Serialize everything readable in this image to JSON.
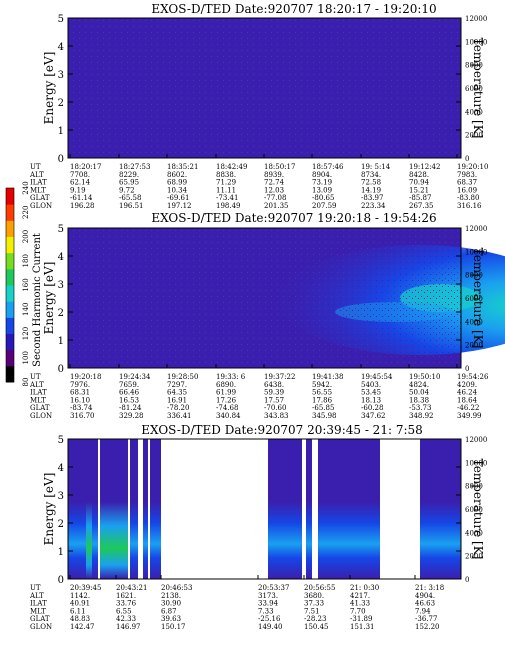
{
  "chart_data": [
    {
      "type": "heatmap",
      "title": "EXOS-D/TED   Date:920707   18:20:17 - 19:20:10",
      "ylabel": "Energy [eV]",
      "y2label": "Temperature [K]",
      "ylim": [
        0,
        5
      ],
      "y2lim": [
        0,
        12000
      ],
      "y_ticks": [
        "0",
        "1",
        "2",
        "3",
        "4",
        "5"
      ],
      "y2_ticks": [
        "0",
        "2000",
        "4000",
        "6000",
        "8000",
        "10000",
        "12000"
      ],
      "row_labels": [
        "UT",
        "ALT",
        "ILAT",
        "MLT",
        "GLAT",
        "GLON"
      ],
      "columns": [
        [
          "18:20:17",
          "7708.",
          "62.14",
          "9.19",
          "-61.14",
          "196.28"
        ],
        [
          "18:27:53",
          "8229.",
          "65.95",
          "9.72",
          "-65.58",
          "196.51"
        ],
        [
          "18:35:21",
          "8602.",
          "68.99",
          "10.34",
          "-69.61",
          "197.12"
        ],
        [
          "18:42:49",
          "8838.",
          "71.29",
          "11.11",
          "-73.41",
          "198.49"
        ],
        [
          "18:50:17",
          "8939.",
          "72.74",
          "12.03",
          "-77.08",
          "201.35"
        ],
        [
          "18:57:46",
          "8904.",
          "73.19",
          "13.09",
          "-80.65",
          "207.59"
        ],
        [
          "19: 5:14",
          "8734.",
          "72.58",
          "14.19",
          "-83.97",
          "223.34"
        ],
        [
          "19:12:42",
          "8428.",
          "70.94",
          "15.21",
          "-85.87",
          "267.35"
        ],
        [
          "19:20:10",
          "7983.",
          "68.37",
          "16.09",
          "-83.80",
          "316.16"
        ]
      ]
    },
    {
      "type": "heatmap",
      "title": "EXOS-D/TED   Date:920707   19:20:18 - 19:54:26",
      "ylabel": "Energy [eV]",
      "y2label": "Temperature [K]",
      "ylim": [
        0,
        5
      ],
      "y2lim": [
        0,
        12000
      ],
      "y_ticks": [
        "0",
        "1",
        "2",
        "3",
        "4",
        "5"
      ],
      "y2_ticks": [
        "0",
        "2000",
        "4000",
        "6000",
        "8000",
        "10000",
        "12000"
      ],
      "row_labels": [
        "UT",
        "ALT",
        "ILAT",
        "MLT",
        "GLAT",
        "GLON"
      ],
      "columns": [
        [
          "19:20:18",
          "7976.",
          "68.31",
          "16.10",
          "-83.74",
          "316.70"
        ],
        [
          "19:24:34",
          "7659.",
          "66.46",
          "16.53",
          "-81.24",
          "329.28"
        ],
        [
          "19:28:50",
          "7297.",
          "64.35",
          "16.91",
          "-78.20",
          "336.41"
        ],
        [
          "19:33: 6",
          "6890.",
          "61.99",
          "17.26",
          "-74.68",
          "340.84"
        ],
        [
          "19:37:22",
          "6438.",
          "59.39",
          "17.57",
          "-70.60",
          "343.83"
        ],
        [
          "19:41:38",
          "5942.",
          "56.55",
          "17.86",
          "-65.85",
          "345.98"
        ],
        [
          "19:45:54",
          "5403.",
          "53.45",
          "18.13",
          "-60.28",
          "347.62"
        ],
        [
          "19:50:10",
          "4824.",
          "50.04",
          "18.38",
          "-53.73",
          "348.92"
        ],
        [
          "19:54:26",
          "4209.",
          "46.24",
          "18.64",
          "-46.22",
          "349.99"
        ]
      ]
    },
    {
      "type": "heatmap",
      "title": "EXOS-D/TED   Date:920707   20:39:45 - 21: 7:58",
      "ylabel": "Energy [eV]",
      "y2label": "Temperature [K]",
      "ylim": [
        0,
        5
      ],
      "y2lim": [
        0,
        12000
      ],
      "y_ticks": [
        "0",
        "1",
        "2",
        "3",
        "4",
        "5"
      ],
      "y2_ticks": [
        "0",
        "2000",
        "4000",
        "6000",
        "8000",
        "10000",
        "12000"
      ],
      "row_labels": [
        "UT",
        "ALT",
        "ILAT",
        "MLT",
        "GLAT",
        "GLON"
      ],
      "columns": [
        [
          "20:39:45",
          "1142.",
          "40.91",
          "6.11",
          "48.83",
          "142.47"
        ],
        [
          "20:43:21",
          "1621.",
          "33.76",
          "6.55",
          "42.33",
          "146.97"
        ],
        [
          "20:46:53",
          "2138.",
          "30.90",
          "6.87",
          "39.63",
          "150.17"
        ],
        [
          "20:53:37",
          "3173.",
          "33.94",
          "7.33",
          "-25.16",
          "149.40"
        ],
        [
          "20:56:55",
          "3680.",
          "37.33",
          "7.51",
          "-28.23",
          "150.45"
        ],
        [
          "21: 0:30",
          "4217.",
          "41.33",
          "7.70",
          "-31.89",
          "151.31"
        ],
        [
          "21: 3:18",
          "4904.",
          "46.63",
          "7.94",
          "-36.77",
          "152.20"
        ]
      ]
    }
  ],
  "colorbar": {
    "label": "Second Harmonic Current",
    "ticks": [
      "80",
      "100",
      "120",
      "140",
      "160",
      "180",
      "200",
      "220",
      "240"
    ],
    "colors": [
      "#000000",
      "#5a0078",
      "#2818b8",
      "#1646e6",
      "#1aa0f0",
      "#18d2c8",
      "#1ec85a",
      "#78dc1e",
      "#f0f000",
      "#ffa000",
      "#ff3c00",
      "#e60000"
    ]
  },
  "colors": {
    "background_field": "#3a1fae",
    "grid_dots": "#6a1fa0"
  }
}
